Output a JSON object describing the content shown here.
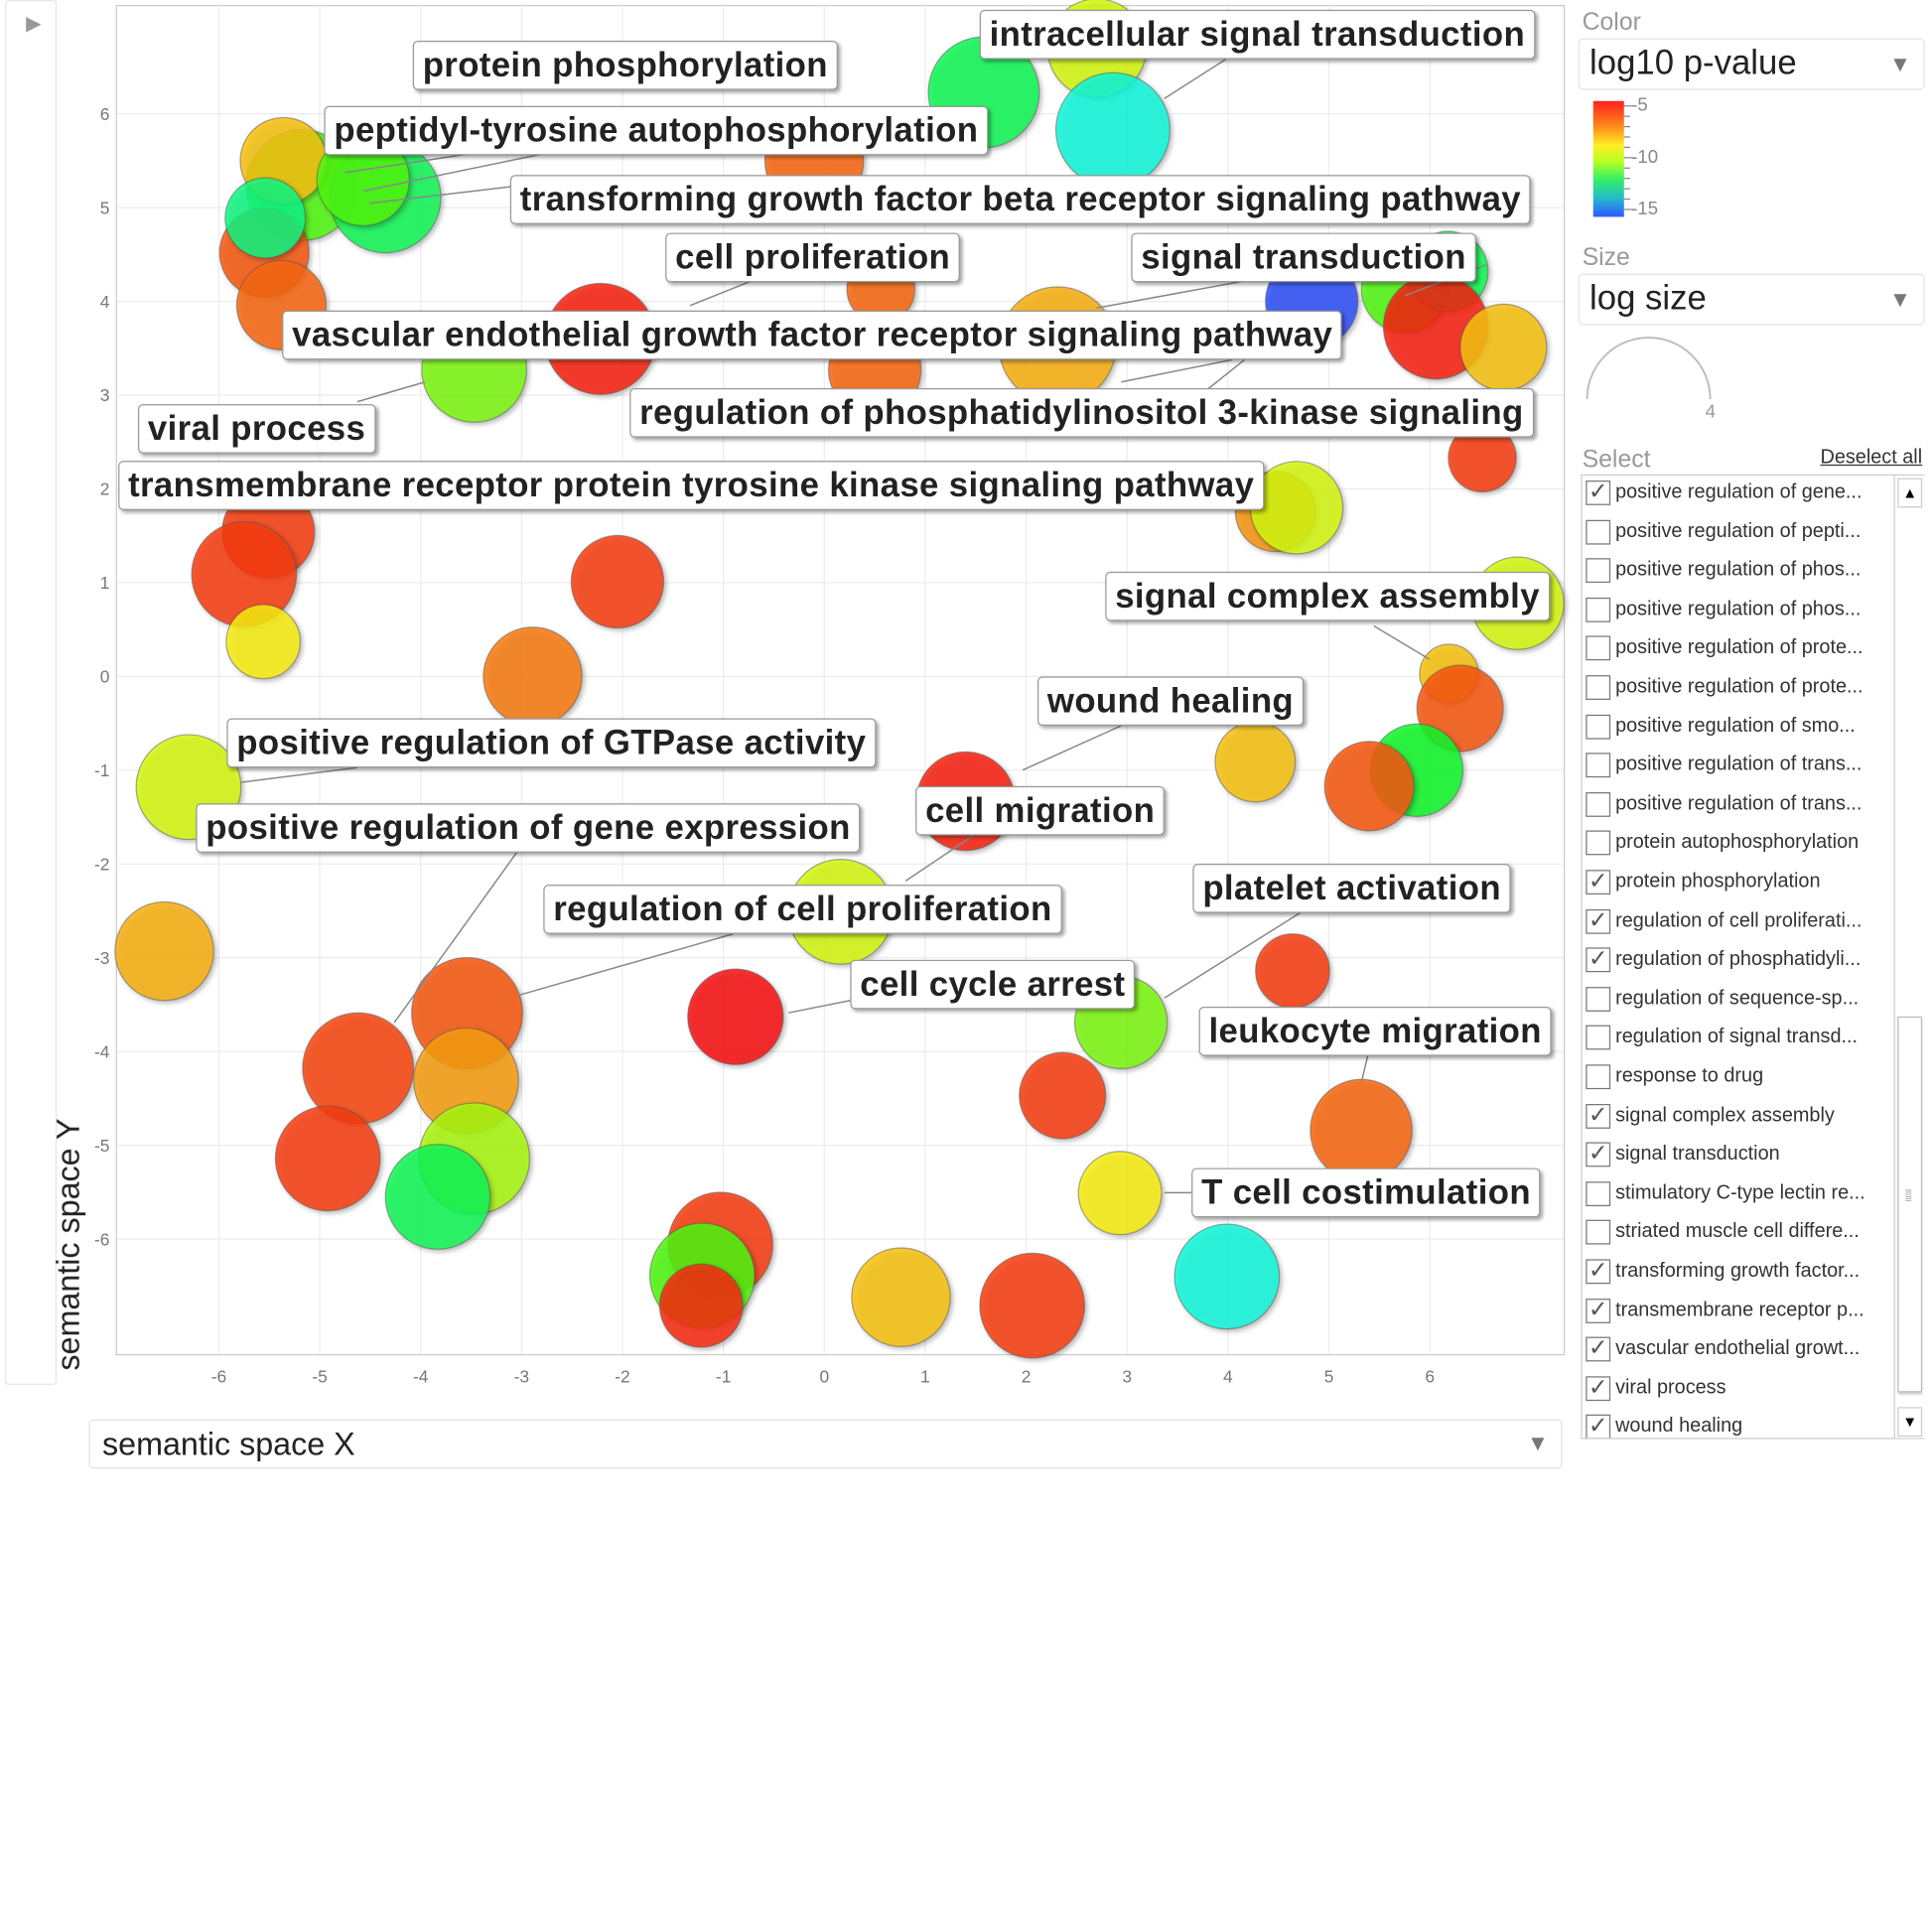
{
  "toolbar": {
    "play_icon": "play-triangle-icon"
  },
  "axes": {
    "y_label": "semantic space Y",
    "x_label": "semantic space X"
  },
  "panel": {
    "color_label": "Color",
    "color_value": "log10 p-value",
    "colorbar_ticks": [
      "-5",
      "-10",
      "-15"
    ],
    "size_label": "Size",
    "size_value": "log size",
    "size_legend_value": "4",
    "select_label": "Select",
    "deselect_all": "Deselect all",
    "items": [
      {
        "label": "positive regulation of gene...",
        "checked": true
      },
      {
        "label": "positive regulation of pepti...",
        "checked": false
      },
      {
        "label": "positive regulation of phos...",
        "checked": false
      },
      {
        "label": "positive regulation of phos...",
        "checked": false
      },
      {
        "label": "positive regulation of prote...",
        "checked": false
      },
      {
        "label": "positive regulation of prote...",
        "checked": false
      },
      {
        "label": "positive regulation of smo...",
        "checked": false
      },
      {
        "label": "positive regulation of trans...",
        "checked": false
      },
      {
        "label": "positive regulation of trans...",
        "checked": false
      },
      {
        "label": "protein autophosphorylation",
        "checked": false
      },
      {
        "label": "protein phosphorylation",
        "checked": true
      },
      {
        "label": "regulation of cell proliferati...",
        "checked": true
      },
      {
        "label": "regulation of phosphatidyli...",
        "checked": true
      },
      {
        "label": "regulation of sequence-sp...",
        "checked": false
      },
      {
        "label": "regulation of signal transd...",
        "checked": false
      },
      {
        "label": "response to drug",
        "checked": false
      },
      {
        "label": "signal complex assembly",
        "checked": true
      },
      {
        "label": "signal transduction",
        "checked": true
      },
      {
        "label": "stimulatory C-type lectin re...",
        "checked": false
      },
      {
        "label": "striated muscle cell differe...",
        "checked": false
      },
      {
        "label": "transforming growth factor...",
        "checked": true
      },
      {
        "label": "transmembrane receptor p...",
        "checked": true
      },
      {
        "label": "vascular endothelial growt...",
        "checked": true
      },
      {
        "label": "viral process",
        "checked": true
      },
      {
        "label": "wound healing",
        "checked": true
      }
    ]
  },
  "chart_data": {
    "type": "scatter",
    "subtype": "bubble",
    "xlabel": "semantic space X",
    "ylabel": "semantic space Y",
    "xlim": [
      -7.1,
      7.3
    ],
    "ylim": [
      -7.2,
      7.2
    ],
    "x_ticks": [
      -6,
      -5,
      -4,
      -3,
      -2,
      -1,
      0,
      1,
      2,
      3,
      4,
      5,
      6
    ],
    "y_ticks": [
      6,
      5,
      4,
      3,
      2,
      1,
      0,
      -1,
      -2,
      -3,
      -4,
      -5,
      -6
    ],
    "grid": true,
    "color_scale": {
      "variable": "log10 p-value",
      "range": [
        -15,
        -5
      ],
      "colors": [
        "#3355ff",
        "#33ee66",
        "#ffee22",
        "#ff2020"
      ]
    },
    "size_variable": "log size",
    "labels": [
      "intracellular signal transduction",
      "protein phosphorylation",
      "peptidyl-tyrosine autophosphorylation",
      "transforming growth factor beta receptor signaling pathway",
      "cell proliferation",
      "signal transduction",
      "vascular endothelial growth factor receptor signaling pathway",
      "regulation of phosphatidylinositol 3-kinase signaling",
      "viral process",
      "transmembrane receptor protein tyrosine kinase signaling pathway",
      "signal complex assembly",
      "wound healing",
      "positive regulation of GTPase activity",
      "cell migration",
      "positive regulation of gene expression",
      "platelet activation",
      "regulation of cell proliferation",
      "cell cycle arrest",
      "leukocyte migration",
      "T cell costimulation"
    ],
    "points": [
      {
        "x": 1.58,
        "y": 6.23,
        "size": 3.6,
        "p": -11
      },
      {
        "x": 2.7,
        "y": 6.7,
        "size": 3.2,
        "p": -8
      },
      {
        "x": 2.86,
        "y": 5.83,
        "size": 3.7,
        "p": -12.5
      },
      {
        "x": -0.1,
        "y": 5.5,
        "size": 3.2,
        "p": -6
      },
      {
        "x": -5.18,
        "y": 5.24,
        "size": 3.6,
        "p": -9.5
      },
      {
        "x": -5.36,
        "y": 5.5,
        "size": 2.8,
        "p": -7
      },
      {
        "x": -4.35,
        "y": 5.11,
        "size": 3.6,
        "p": -11
      },
      {
        "x": -4.57,
        "y": 5.3,
        "size": 3.0,
        "p": -9.5
      },
      {
        "x": -5.55,
        "y": 4.52,
        "size": 2.9,
        "p": -5.8
      },
      {
        "x": -5.54,
        "y": 4.89,
        "size": 2.6,
        "p": -11.5
      },
      {
        "x": -5.38,
        "y": 3.96,
        "size": 2.9,
        "p": -6
      },
      {
        "x": -2.22,
        "y": 3.6,
        "size": 3.6,
        "p": -5.2
      },
      {
        "x": -3.47,
        "y": 3.27,
        "size": 3.4,
        "p": -9
      },
      {
        "x": 0.56,
        "y": 4.13,
        "size": 2.2,
        "p": -6
      },
      {
        "x": 0.5,
        "y": 3.27,
        "size": 3.0,
        "p": -6
      },
      {
        "x": 2.31,
        "y": 3.53,
        "size": 3.8,
        "p": -6.8
      },
      {
        "x": 4.83,
        "y": 4.0,
        "size": 3.0,
        "p": -15
      },
      {
        "x": 5.75,
        "y": 4.13,
        "size": 2.8,
        "p": -9.5
      },
      {
        "x": 6.18,
        "y": 4.32,
        "size": 2.6,
        "p": -11
      },
      {
        "x": 6.06,
        "y": 3.73,
        "size": 3.4,
        "p": -5.2
      },
      {
        "x": 6.73,
        "y": 3.51,
        "size": 2.8,
        "p": -7
      },
      {
        "x": 6.52,
        "y": 2.33,
        "size": 2.2,
        "p": -5.5
      },
      {
        "x": 4.47,
        "y": 1.76,
        "size": 2.6,
        "p": -6.5
      },
      {
        "x": 4.68,
        "y": 1.8,
        "size": 3.0,
        "p": -8
      },
      {
        "x": 6.87,
        "y": 0.78,
        "size": 3.0,
        "p": -8
      },
      {
        "x": -5.51,
        "y": 1.54,
        "size": 3.0,
        "p": -5.5
      },
      {
        "x": -5.75,
        "y": 1.09,
        "size": 3.4,
        "p": -5.5
      },
      {
        "x": -5.56,
        "y": 0.37,
        "size": 2.4,
        "p": -7.5
      },
      {
        "x": -2.05,
        "y": 1.01,
        "size": 3.0,
        "p": -5.5
      },
      {
        "x": -2.89,
        "y": 0.0,
        "size": 3.2,
        "p": -6.2
      },
      {
        "x": -6.3,
        "y": -1.18,
        "size": 3.4,
        "p": -8
      },
      {
        "x": 6.19,
        "y": 0.03,
        "size": 1.9,
        "p": -7
      },
      {
        "x": 6.3,
        "y": -0.34,
        "size": 2.8,
        "p": -5.8
      },
      {
        "x": 5.87,
        "y": -1.0,
        "size": 3.0,
        "p": -10.5
      },
      {
        "x": 5.4,
        "y": -1.17,
        "size": 2.9,
        "p": -5.8
      },
      {
        "x": 4.27,
        "y": -0.91,
        "size": 2.6,
        "p": -7
      },
      {
        "x": 1.4,
        "y": -1.33,
        "size": 3.2,
        "p": -5.2
      },
      {
        "x": 0.16,
        "y": -2.51,
        "size": 3.4,
        "p": -8
      },
      {
        "x": -6.54,
        "y": -2.93,
        "size": 3.2,
        "p": -6.8
      },
      {
        "x": -3.54,
        "y": -3.59,
        "size": 3.6,
        "p": -5.8
      },
      {
        "x": -4.62,
        "y": -4.18,
        "size": 3.6,
        "p": -5.6
      },
      {
        "x": -3.55,
        "y": -4.31,
        "size": 3.4,
        "p": -6.6
      },
      {
        "x": -3.47,
        "y": -5.14,
        "size": 3.6,
        "p": -8.5
      },
      {
        "x": -4.92,
        "y": -5.14,
        "size": 3.4,
        "p": -5.5
      },
      {
        "x": -3.83,
        "y": -5.55,
        "size": 3.4,
        "p": -11
      },
      {
        "x": -0.88,
        "y": -3.63,
        "size": 3.1,
        "p": -5
      },
      {
        "x": 2.94,
        "y": -3.69,
        "size": 3.0,
        "p": -9
      },
      {
        "x": 2.36,
        "y": -4.47,
        "size": 2.8,
        "p": -5.5
      },
      {
        "x": 4.64,
        "y": -3.14,
        "size": 2.4,
        "p": -5.5
      },
      {
        "x": 5.32,
        "y": -4.84,
        "size": 3.3,
        "p": -6
      },
      {
        "x": 2.93,
        "y": -5.51,
        "size": 2.7,
        "p": -7.5
      },
      {
        "x": 3.99,
        "y": -6.4,
        "size": 3.4,
        "p": -12.5
      },
      {
        "x": -1.03,
        "y": -6.06,
        "size": 3.4,
        "p": -5.5
      },
      {
        "x": -1.21,
        "y": -6.39,
        "size": 3.4,
        "p": -9.5
      },
      {
        "x": -1.22,
        "y": -6.71,
        "size": 2.7,
        "p": -5.3
      },
      {
        "x": 0.76,
        "y": -6.62,
        "size": 3.2,
        "p": -7
      },
      {
        "x": 2.06,
        "y": -6.71,
        "size": 3.4,
        "p": -5.5
      }
    ]
  }
}
